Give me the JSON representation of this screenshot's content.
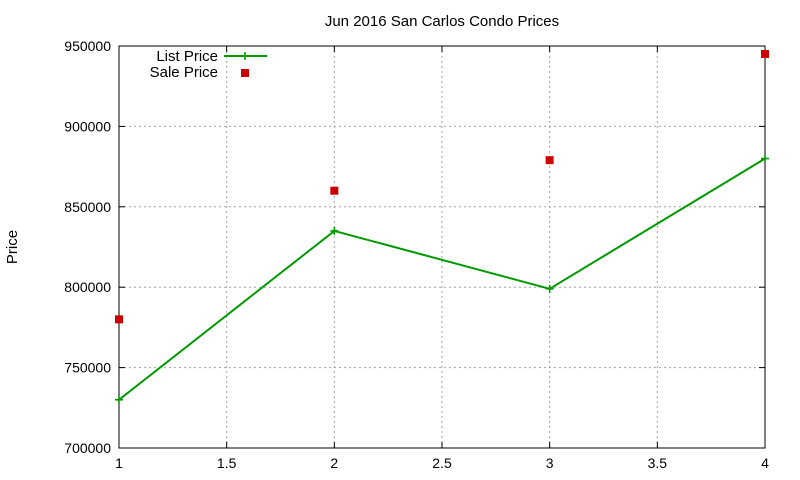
{
  "chart_data": {
    "type": "line",
    "title": "Jun 2016 San Carlos Condo Prices",
    "xlabel": "",
    "ylabel": "Price",
    "xlim": [
      1,
      4
    ],
    "ylim": [
      700000,
      950000
    ],
    "x_ticks": [
      1,
      1.5,
      2,
      2.5,
      3,
      3.5,
      4
    ],
    "x_tick_labels": [
      "1",
      "1.5",
      "2",
      "2.5",
      "3",
      "3.5",
      "4"
    ],
    "y_ticks": [
      700000,
      750000,
      800000,
      850000,
      900000,
      950000
    ],
    "y_tick_labels": [
      "700000",
      "750000",
      "800000",
      "850000",
      "900000",
      "950000"
    ],
    "grid": true,
    "legend_position": "top-left",
    "series": [
      {
        "name": "List Price",
        "style": "line+cross",
        "color": "#009900",
        "x": [
          1,
          2,
          3,
          4
        ],
        "y": [
          730000,
          835000,
          799000,
          880000
        ]
      },
      {
        "name": "Sale Price",
        "style": "square",
        "color": "#cc0000",
        "x": [
          1,
          2,
          3,
          4
        ],
        "y": [
          780000,
          860000,
          879000,
          945000
        ]
      }
    ]
  }
}
